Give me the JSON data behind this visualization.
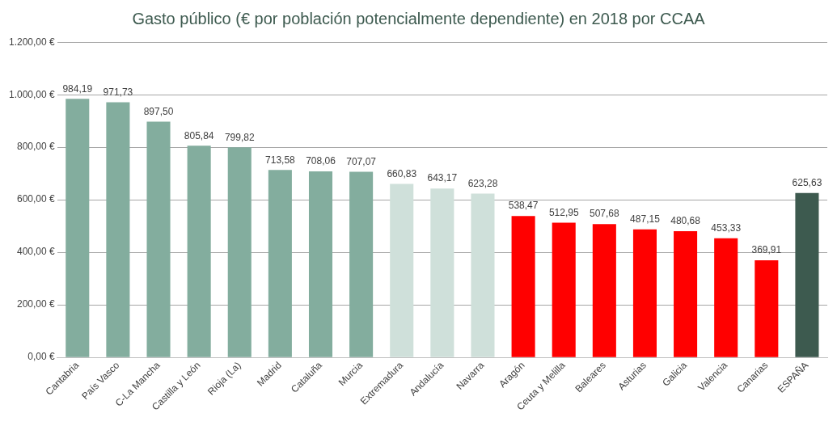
{
  "chart_data": {
    "type": "bar",
    "title": "Gasto público (€ por población potencialmente dependiente) en 2018 por CCAA",
    "categories": [
      "Cantabria",
      "País Vasco",
      "C-La Mancha",
      "Castilla y León",
      "Rioja (La)",
      "Madrid",
      "Cataluña",
      "Murcia",
      "Extremadura",
      "Andalucía",
      "Navarra",
      "Aragón",
      "Ceuta y Melilla",
      "Baleares",
      "Asturias",
      "Galicia",
      "Valencia",
      "Canarias",
      "ESPAÑA"
    ],
    "values": [
      984.19,
      971.73,
      897.5,
      805.84,
      799.82,
      713.58,
      708.06,
      707.07,
      660.83,
      643.17,
      623.28,
      538.47,
      512.95,
      507.68,
      487.15,
      480.68,
      453.33,
      369.91,
      625.63
    ],
    "colors": [
      "#83ad9e",
      "#83ad9e",
      "#83ad9e",
      "#83ad9e",
      "#83ad9e",
      "#83ad9e",
      "#83ad9e",
      "#83ad9e",
      "#cfe0da",
      "#cfe0da",
      "#cfe0da",
      "#ff0000",
      "#ff0000",
      "#ff0000",
      "#ff0000",
      "#ff0000",
      "#ff0000",
      "#ff0000",
      "#3d5a4f"
    ],
    "value_labels": [
      "984,19",
      "971,73",
      "897,50",
      "805,84",
      "799,82",
      "713,58",
      "708,06",
      "707,07",
      "660,83",
      "643,17",
      "623,28",
      "538,47",
      "512,95",
      "507,68",
      "487,15",
      "480,68",
      "453,33",
      "369,91",
      "625,63"
    ],
    "ylim": [
      0,
      1200
    ],
    "yticks": [
      {
        "value": 0,
        "label": "0,00 €"
      },
      {
        "value": 200,
        "label": "200,00 €"
      },
      {
        "value": 400,
        "label": "400,00 €"
      },
      {
        "value": 600,
        "label": "600,00 €"
      },
      {
        "value": 800,
        "label": "800,00 €"
      },
      {
        "value": 1000,
        "label": "1.000,00 €"
      },
      {
        "value": 1200,
        "label": "1.200,00 €"
      }
    ],
    "grid": "y",
    "legend": false
  }
}
